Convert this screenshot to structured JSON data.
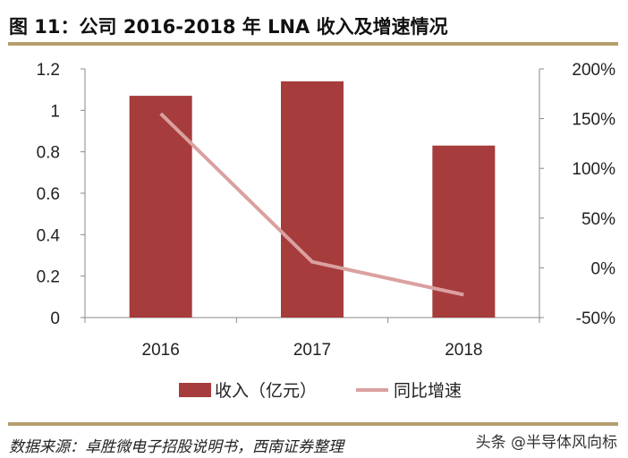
{
  "title": "图 11：公司 2016-2018 年 LNA 收入及增速情况",
  "source": "数据来源：卓胜微电子招股说明书，西南证券整理",
  "watermark": "头条 @半导体风向标",
  "chart_data": {
    "type": "bar+line",
    "categories": [
      "2016",
      "2017",
      "2018"
    ],
    "series": [
      {
        "name": "收入（亿元）",
        "type": "bar",
        "axis": "left",
        "values": [
          1.07,
          1.14,
          0.83
        ],
        "color": "#a63c3c"
      },
      {
        "name": "同比增速",
        "type": "line",
        "axis": "right",
        "values": [
          155,
          6,
          -27
        ],
        "color": "#dba0a0"
      }
    ],
    "left_axis": {
      "ylim": [
        0,
        1.2
      ],
      "ticks": [
        0,
        0.2,
        0.4,
        0.6,
        0.8,
        1,
        1.2
      ],
      "tick_labels": [
        "0",
        "0.2",
        "0.4",
        "0.6",
        "0.8",
        "1",
        "1.2"
      ]
    },
    "right_axis": {
      "ylim": [
        -50,
        200
      ],
      "ticks": [
        -50,
        0,
        50,
        100,
        150,
        200
      ],
      "tick_labels": [
        "-50%",
        "0%",
        "50%",
        "100%",
        "150%",
        "200%"
      ]
    },
    "grid": false,
    "legend": "bottom"
  }
}
